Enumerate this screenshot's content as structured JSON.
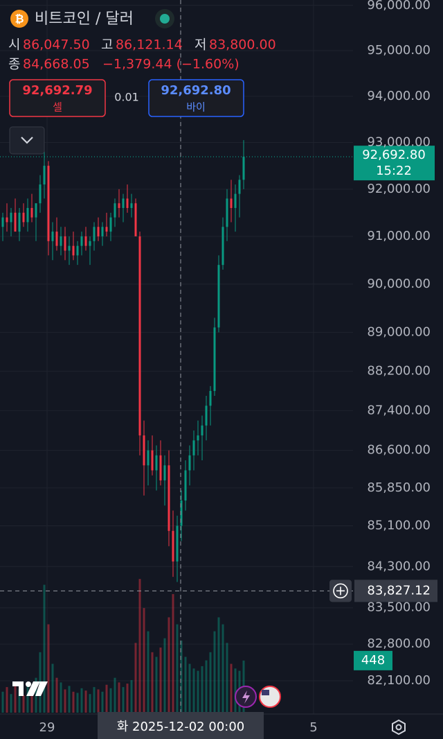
{
  "chart_data": {
    "type": "candlestick",
    "title": "비트코인 / 달러",
    "ohlc_labels": {
      "open": "시",
      "high": "고",
      "low": "저",
      "close": "종"
    },
    "ohlc_values": {
      "open": "86,047.50",
      "high": "86,121.14",
      "low": "83,800.00",
      "close": "84,668.05"
    },
    "change": "−1,379.44 (−1.60%)",
    "sell": {
      "price": "92,692.79",
      "label": "셀"
    },
    "spread": "0.01",
    "buy": {
      "price": "92,692.80",
      "label": "바이"
    },
    "last_price": {
      "value": 92692.8,
      "label": "92,692.80",
      "time": "15:22"
    },
    "crosshair": {
      "value": 83827.12,
      "label": "83,827.12",
      "x_label": "화 2025-12-02  00:00"
    },
    "x_labels": [
      "29",
      "5"
    ],
    "log_scale": true,
    "grid": true,
    "up_color": "#089981",
    "down_color": "#f23645",
    "ylim": [
      81470,
      96120
    ],
    "yticks": [
      {
        "value": 96000,
        "label": "96,000.00"
      },
      {
        "value": 95000,
        "label": "95,000.00"
      },
      {
        "value": 94000,
        "label": "94,000.00"
      },
      {
        "value": 93000,
        "label": "93,000.00"
      },
      {
        "value": 92000,
        "label": "92,000.00"
      },
      {
        "value": 91000,
        "label": "91,000.00"
      },
      {
        "value": 90000,
        "label": "90,000.00"
      },
      {
        "value": 89000,
        "label": "89,000.00"
      },
      {
        "value": 88200,
        "label": "88,200.00"
      },
      {
        "value": 87400,
        "label": "87,400.00"
      },
      {
        "value": 86600,
        "label": "86,600.00"
      },
      {
        "value": 85850,
        "label": "85,850.00"
      },
      {
        "value": 85100,
        "label": "85,100.00"
      },
      {
        "value": 84300,
        "label": "84,300.00"
      },
      {
        "value": 83500,
        "label": "83,500.00"
      },
      {
        "value": 82800,
        "label": "82,800.00"
      },
      {
        "value": 82100,
        "label": "82,100.00"
      }
    ],
    "candles": {
      "open": [
        91200,
        91400,
        91300,
        91500,
        91100,
        91500,
        91300,
        91600,
        91400,
        91700,
        92100,
        92500,
        90900,
        91100,
        90800,
        91000,
        90700,
        90800,
        90600,
        90800,
        91000,
        90800,
        90900,
        91200,
        91000,
        91200,
        91100,
        91400,
        91700,
        91600,
        91800,
        91600,
        91700,
        91000,
        86900,
        86300,
        86600,
        86200,
        86500,
        86000,
        86300,
        85000,
        84400,
        85100,
        85600,
        86200,
        86500,
        86800,
        86900,
        87100,
        87500,
        87800,
        89100,
        90400,
        91200,
        91800,
        91600,
        91900,
        92200
      ],
      "high": [
        91500,
        91700,
        91600,
        91800,
        91600,
        91700,
        91800,
        91900,
        91700,
        92300,
        93150,
        92600,
        91300,
        91400,
        91200,
        91200,
        91000,
        91100,
        90900,
        91100,
        91200,
        91000,
        91300,
        91400,
        91300,
        91500,
        91500,
        91800,
        92000,
        91900,
        92100,
        91900,
        91800,
        91100,
        87200,
        86800,
        86900,
        86700,
        86800,
        86500,
        86600,
        85400,
        85300,
        85800,
        86400,
        86700,
        87000,
        87200,
        87300,
        87700,
        87900,
        89300,
        90600,
        91400,
        92000,
        92200,
        92100,
        92300,
        93050
      ],
      "low": [
        90900,
        91100,
        91000,
        91200,
        90900,
        91200,
        91100,
        91300,
        90900,
        91500,
        91800,
        90600,
        90500,
        90700,
        90600,
        90500,
        90400,
        90500,
        90400,
        90600,
        90700,
        90400,
        90700,
        90900,
        90800,
        91000,
        90900,
        91200,
        91400,
        91300,
        91500,
        91400,
        91100,
        86500,
        85700,
        85900,
        86100,
        85800,
        85900,
        85500,
        84700,
        84100,
        84000,
        84800,
        85400,
        85900,
        86200,
        86500,
        86400,
        86800,
        87100,
        87700,
        89000,
        90300,
        90900,
        91300,
        91100,
        91400,
        92000
      ],
      "close": [
        91400,
        91300,
        91500,
        91100,
        91500,
        91300,
        91600,
        91400,
        91700,
        92100,
        92500,
        90900,
        91100,
        90800,
        91000,
        90700,
        90800,
        90600,
        90800,
        91000,
        90800,
        90900,
        91200,
        91000,
        91200,
        91100,
        91400,
        91700,
        91600,
        91800,
        91600,
        91700,
        91000,
        86900,
        86300,
        86600,
        86200,
        86500,
        86000,
        86300,
        85000,
        84400,
        85100,
        85600,
        86200,
        86500,
        86800,
        86900,
        87100,
        87500,
        87800,
        89100,
        90400,
        91200,
        91800,
        91600,
        91900,
        92200,
        92692.8
      ]
    },
    "volume": [
      180,
      220,
      160,
      240,
      200,
      150,
      260,
      190,
      300,
      520,
      1100,
      760,
      420,
      300,
      260,
      200,
      230,
      180,
      170,
      210,
      190,
      160,
      220,
      200,
      180,
      240,
      210,
      300,
      260,
      220,
      250,
      280,
      600,
      1150,
      900,
      700,
      520,
      480,
      560,
      640,
      820,
      1020,
      760,
      620,
      480,
      420,
      380,
      360,
      400,
      450,
      520,
      700,
      820,
      760,
      600,
      420,
      380,
      360,
      448
    ],
    "vlim": [
      0,
      1300
    ],
    "volume_label": "448"
  }
}
